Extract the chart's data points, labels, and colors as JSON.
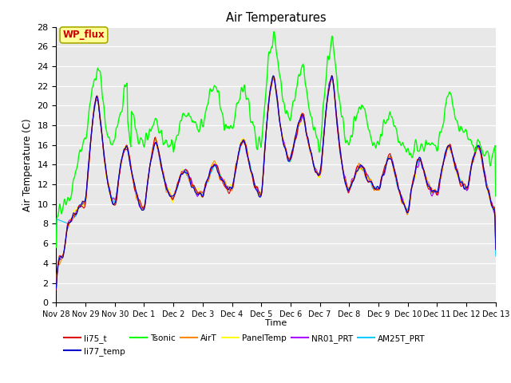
{
  "title": "Air Temperatures",
  "xlabel": "Time",
  "ylabel": "Air Temperature (C)",
  "ylim": [
    0,
    28
  ],
  "yticks": [
    0,
    2,
    4,
    6,
    8,
    10,
    12,
    14,
    16,
    18,
    20,
    22,
    24,
    26,
    28
  ],
  "bg_color": "#e8e8e8",
  "grid_color": "#ffffff",
  "series_order": [
    "AM25T_PRT",
    "NR01_PRT",
    "PanelTemp",
    "AirT",
    "li75_t",
    "li77_temp",
    "Tsonic"
  ],
  "series": {
    "li75_t": {
      "color": "#dd0000",
      "lw": 0.8,
      "zorder": 5
    },
    "li77_temp": {
      "color": "#0000cc",
      "lw": 0.8,
      "zorder": 5
    },
    "Tsonic": {
      "color": "#00ff00",
      "lw": 1.0,
      "zorder": 6
    },
    "AirT": {
      "color": "#ff8800",
      "lw": 0.8,
      "zorder": 4
    },
    "PanelTemp": {
      "color": "#ffff00",
      "lw": 0.8,
      "zorder": 3
    },
    "NR01_PRT": {
      "color": "#aa00ff",
      "lw": 0.8,
      "zorder": 4
    },
    "AM25T_PRT": {
      "color": "#00ccff",
      "lw": 0.8,
      "zorder": 4
    }
  },
  "tick_labels": [
    "Nov 28",
    "Nov 29",
    "Nov 30",
    "Dec 1",
    "Dec 2",
    "Dec 3",
    "Dec 4",
    "Dec 5",
    "Dec 6",
    "Dec 7",
    "Dec 8",
    "Dec 9",
    "Dec 10",
    "Dec 11",
    "Dec 12",
    "Dec 13"
  ],
  "annotation_text": "WP_flux",
  "annotation_color": "#cc0000",
  "annotation_bg": "#ffff99",
  "annotation_border": "#aaaa00",
  "legend_order": [
    "li75_t",
    "li77_temp",
    "Tsonic",
    "AirT",
    "PanelTemp",
    "NR01_PRT",
    "AM25T_PRT"
  ]
}
